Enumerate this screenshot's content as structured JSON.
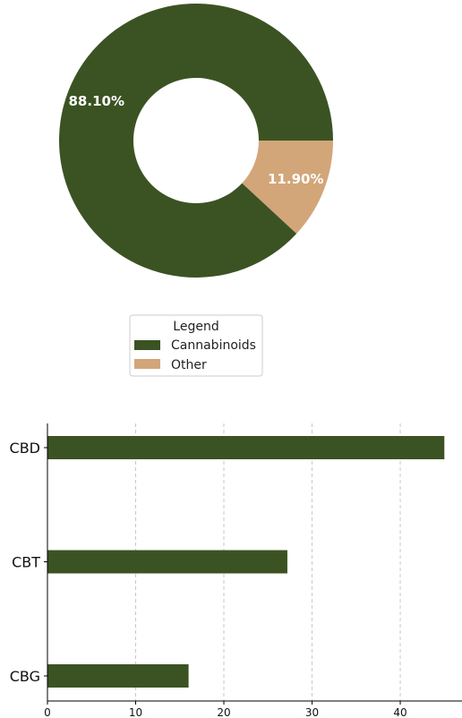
{
  "chart_data": [
    {
      "type": "pie",
      "donut": true,
      "labels": [
        "Cannabinoids",
        "Other"
      ],
      "values": [
        88.1,
        11.9
      ],
      "value_labels": [
        "88.10%",
        "11.90%"
      ],
      "colors": [
        "#3b5323",
        "#d2a679"
      ],
      "legend": {
        "title": "Legend",
        "placement": "bottom-center",
        "entries": [
          "Cannabinoids",
          "Other"
        ]
      }
    },
    {
      "type": "bar",
      "orientation": "horizontal",
      "categories": [
        "CBD",
        "CBT",
        "CBG"
      ],
      "values": [
        45,
        27.2,
        16
      ],
      "color": "#3b5323",
      "xlim": [
        0,
        47
      ],
      "xticks": [
        0,
        10,
        20,
        30,
        40
      ],
      "xtick_labels": [
        "0",
        "10",
        "20",
        "30",
        "40"
      ],
      "grid": "x-dashed"
    }
  ]
}
